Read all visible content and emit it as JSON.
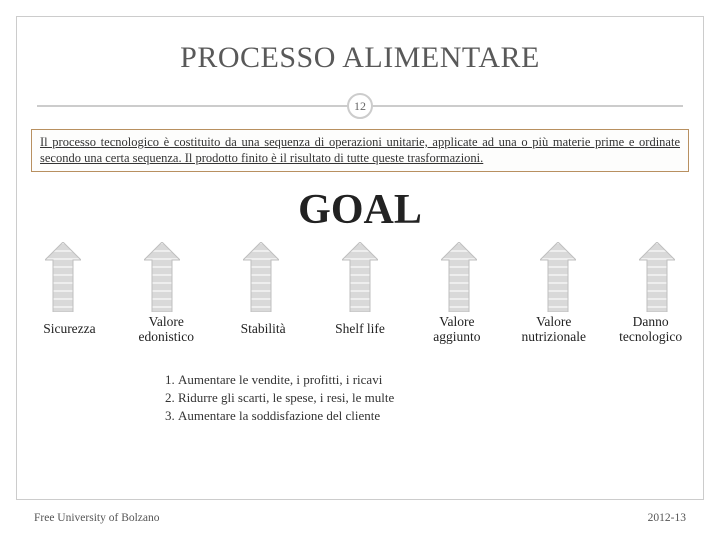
{
  "title": "PROCESSO ALIMENTARE",
  "page_number": "12",
  "intro_text": "Il processo tecnologico è costituito da una sequenza di operazioni unitarie, applicate ad una o più materie prime e ordinate secondo una certa sequenza. Il prodotto finito è il risultato di tutte queste trasformazioni.",
  "goal": "GOAL",
  "arrow": {
    "fill": "#d9d9d9",
    "stroke": "#bfbfbf",
    "stripe": "#eeeeee"
  },
  "labels": [
    "Sicurezza",
    "Valore\nedonistico",
    "Stabilità",
    "Shelf life",
    "Valore\naggiunto",
    "Valore\nnutrizionale",
    "Danno\ntecnologico"
  ],
  "list": [
    "Aumentare le vendite, i profitti, i ricavi",
    "Ridurre gli scarti, le spese, i resi, le multe",
    "Aumentare la soddisfazione del cliente"
  ],
  "footer_left": "Free University of Bolzano",
  "footer_right": "2012-13"
}
